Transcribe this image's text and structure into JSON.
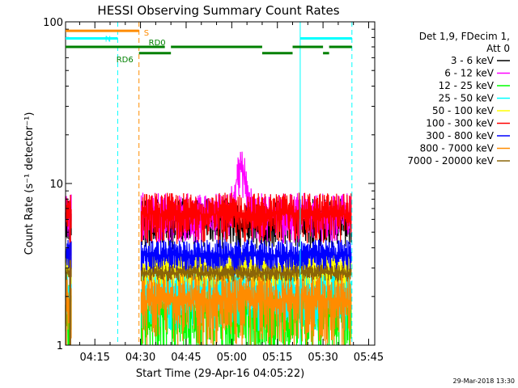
{
  "chart_data": {
    "type": "line",
    "title": "HESSI Observing Summary Count Rates",
    "xlabel": "Start Time (29-Apr-16 04:05:22)",
    "ylabel": "Count Rate (s⁻¹ detector⁻¹)",
    "y_scale": "log",
    "ylim": [
      1,
      100
    ],
    "y_ticks": [
      {
        "value": 1,
        "label": "1"
      },
      {
        "value": 10,
        "label": "10"
      },
      {
        "value": 100,
        "label": "100"
      }
    ],
    "xlim": [
      "04:05:22",
      "05:47:00"
    ],
    "x_ticks": [
      {
        "value": "04:15",
        "label": "04:15"
      },
      {
        "value": "04:30",
        "label": "04:30"
      },
      {
        "value": "04:45",
        "label": "04:45"
      },
      {
        "value": "05:00",
        "label": "05:00"
      },
      {
        "value": "05:15",
        "label": "05:15"
      },
      {
        "value": "05:30",
        "label": "05:30"
      },
      {
        "value": "05:45",
        "label": "05:45"
      }
    ],
    "legend_header": [
      "Det 1,9, FDecim 1,",
      "Att 0"
    ],
    "legend_position": "right",
    "series": [
      {
        "name": "3 - 6 keV",
        "color": "#000000",
        "level": 6.0,
        "noise": 0.35,
        "flare": 5.5
      },
      {
        "name": "6 - 12 keV",
        "color": "#ff00ff",
        "level": 6.5,
        "noise": 0.35,
        "flare": 12.5
      },
      {
        "name": "12 - 25 keV",
        "color": "#00ff00",
        "level": 1.6,
        "noise": 0.5,
        "flare": 1.7
      },
      {
        "name": "25 - 50 keV",
        "color": "#00ffff",
        "level": 2.2,
        "noise": 0.45,
        "flare": 2.3
      },
      {
        "name": "50 - 100 keV",
        "color": "#ffff00",
        "level": 3.0,
        "noise": 0.25,
        "flare": 3.1
      },
      {
        "name": "100 - 300 keV",
        "color": "#ff0000",
        "level": 6.5,
        "noise": 0.35,
        "flare": 6.5
      },
      {
        "name": "300 - 800 keV",
        "color": "#0000ff",
        "level": 3.6,
        "noise": 0.25,
        "flare": 3.6
      },
      {
        "name": "800 - 7000 keV",
        "color": "#ff8c00",
        "level": 1.9,
        "noise": 0.5,
        "flare": 1.9
      },
      {
        "name": "7000 - 20000 keV",
        "color": "#8b6508",
        "level": 2.8,
        "noise": 0.12,
        "flare": 2.8
      }
    ],
    "flare_time": "05:03",
    "data_gaps": [
      [
        "04:07:30",
        "04:30:00"
      ],
      [
        "05:39:30",
        "05:47:00"
      ]
    ],
    "vertical_markers": [
      {
        "time": "04:22:30",
        "color": "#00ffff",
        "style": "dashed"
      },
      {
        "time": "04:29:30",
        "color": "#ff8c00",
        "style": "dashed"
      },
      {
        "time": "05:22:30",
        "color": "#00ffff",
        "style": "solid"
      },
      {
        "time": "05:39:30",
        "color": "#00ffff",
        "style": "dashed"
      }
    ],
    "flag_bars": [
      {
        "label": "S",
        "color": "#ff8c00",
        "level": 88,
        "segments": [
          [
            "04:05:22",
            "04:29:30"
          ]
        ]
      },
      {
        "label": "N",
        "color": "#00ffff",
        "level": 79,
        "segments": [
          [
            "04:05:22",
            "04:22:30"
          ],
          [
            "05:22:30",
            "05:39:30"
          ]
        ]
      },
      {
        "label": "RD0",
        "color": "#008000",
        "level": 70,
        "segments": [
          [
            "04:05:22",
            "04:38:00"
          ],
          [
            "04:40:00",
            "05:10:00"
          ],
          [
            "05:20:00",
            "05:30:00"
          ],
          [
            "05:32:00",
            "05:39:30"
          ]
        ]
      },
      {
        "label": "RD6",
        "color": "#008000",
        "level": 64,
        "segments": [
          [
            "04:29:30",
            "04:40:00"
          ],
          [
            "05:10:00",
            "05:20:00"
          ],
          [
            "05:30:00",
            "05:32:00"
          ]
        ]
      }
    ]
  },
  "footer_timestamp": "29-Mar-2018 13:30"
}
